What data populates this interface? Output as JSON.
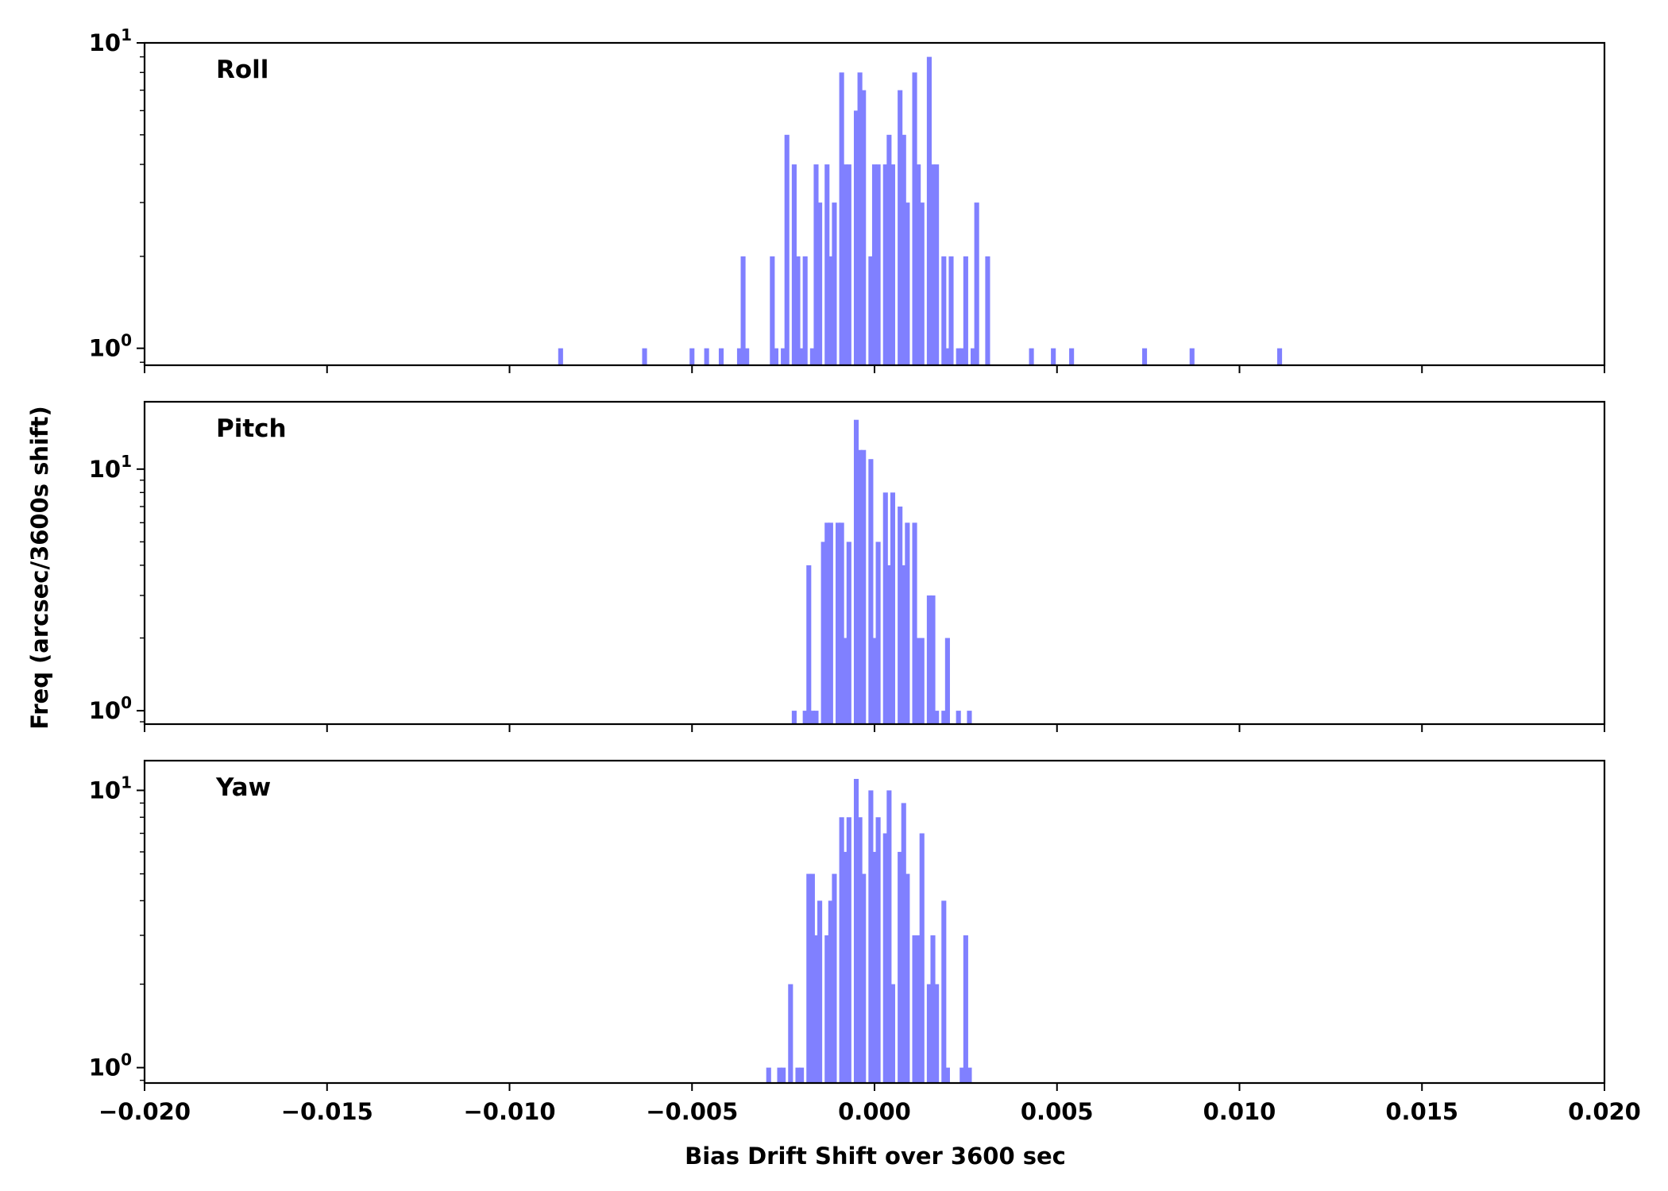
{
  "chart_data": {
    "type": "bar",
    "ylabel": "Freq (arcsec/3600s shift)",
    "xlabel": "Bias Drift Shift over 3600 sec",
    "xlim": [
      -0.02,
      0.02
    ],
    "x_ticks": [
      -0.02,
      -0.015,
      -0.01,
      -0.005,
      0.0,
      0.005,
      0.01,
      0.015,
      0.02
    ],
    "x_tick_labels": [
      "−0.020",
      "−0.015",
      "−0.010",
      "−0.005",
      "0.000",
      "0.005",
      "0.010",
      "0.015",
      "0.020"
    ],
    "yscale": "log",
    "bar_color": "#8080ff",
    "bin_width": 0.000133,
    "panels": [
      {
        "name": "Roll",
        "ylim": [
          0.88,
          10.0
        ],
        "y_ticks": [
          {
            "value": 1,
            "base": "10",
            "exp": "0"
          },
          {
            "value": 10,
            "base": "10",
            "exp": "1"
          }
        ],
        "bins": [
          [
            -0.0086,
            1
          ],
          [
            -0.0063,
            1
          ],
          [
            -0.005,
            1
          ],
          [
            -0.0046,
            1
          ],
          [
            -0.0042,
            1
          ],
          [
            -0.0037,
            1
          ],
          [
            -0.0036,
            2
          ],
          [
            -0.0035,
            1
          ],
          [
            -0.0028,
            2
          ],
          [
            -0.0027,
            1
          ],
          [
            -0.0025,
            1
          ],
          [
            -0.0024,
            5
          ],
          [
            -0.0022,
            4
          ],
          [
            -0.0021,
            2
          ],
          [
            -0.002,
            1
          ],
          [
            -0.0019,
            2
          ],
          [
            -0.0017,
            1
          ],
          [
            -0.0016,
            4
          ],
          [
            -0.0015,
            3
          ],
          [
            -0.0013,
            4
          ],
          [
            -0.0012,
            2
          ],
          [
            -0.0011,
            3
          ],
          [
            -0.0009,
            8
          ],
          [
            -0.0008,
            4
          ],
          [
            -0.0007,
            4
          ],
          [
            -0.0005,
            6
          ],
          [
            -0.0004,
            8
          ],
          [
            -0.0003,
            7
          ],
          [
            -0.0001,
            2
          ],
          [
            0.0,
            4
          ],
          [
            0.0001,
            4
          ],
          [
            0.0003,
            4
          ],
          [
            0.0004,
            5
          ],
          [
            0.0005,
            4
          ],
          [
            0.0007,
            7
          ],
          [
            0.0008,
            5
          ],
          [
            0.0009,
            3
          ],
          [
            0.0011,
            8
          ],
          [
            0.0012,
            4
          ],
          [
            0.0013,
            3
          ],
          [
            0.0015,
            9
          ],
          [
            0.0016,
            4
          ],
          [
            0.0017,
            4
          ],
          [
            0.0019,
            2
          ],
          [
            0.002,
            1
          ],
          [
            0.0021,
            2
          ],
          [
            0.0023,
            1
          ],
          [
            0.0024,
            1
          ],
          [
            0.0025,
            2
          ],
          [
            0.0027,
            1
          ],
          [
            0.0028,
            3
          ],
          [
            0.0031,
            2
          ],
          [
            0.0043,
            1
          ],
          [
            0.0049,
            1
          ],
          [
            0.0054,
            1
          ],
          [
            0.0074,
            1
          ],
          [
            0.0087,
            1
          ],
          [
            0.0111,
            1
          ]
        ]
      },
      {
        "name": "Pitch",
        "ylim": [
          0.88,
          19.0
        ],
        "y_ticks": [
          {
            "value": 1,
            "base": "10",
            "exp": "0"
          },
          {
            "value": 10,
            "base": "10",
            "exp": "1"
          }
        ],
        "bins": [
          [
            -0.0022,
            1
          ],
          [
            -0.0019,
            1
          ],
          [
            -0.0018,
            4
          ],
          [
            -0.0017,
            1
          ],
          [
            -0.0016,
            1
          ],
          [
            -0.0014,
            5
          ],
          [
            -0.0013,
            6
          ],
          [
            -0.0012,
            6
          ],
          [
            -0.001,
            6
          ],
          [
            -0.0009,
            6
          ],
          [
            -0.0008,
            2
          ],
          [
            -0.0007,
            5
          ],
          [
            -0.0005,
            16
          ],
          [
            -0.0004,
            12
          ],
          [
            -0.0003,
            12
          ],
          [
            -0.0001,
            11
          ],
          [
            0.0,
            2
          ],
          [
            0.0001,
            5
          ],
          [
            0.0003,
            8
          ],
          [
            0.0004,
            4
          ],
          [
            0.0005,
            8
          ],
          [
            0.0007,
            7
          ],
          [
            0.0008,
            4
          ],
          [
            0.0009,
            6
          ],
          [
            0.0011,
            6
          ],
          [
            0.0012,
            2
          ],
          [
            0.0013,
            2
          ],
          [
            0.0015,
            3
          ],
          [
            0.0016,
            3
          ],
          [
            0.0017,
            1
          ],
          [
            0.0019,
            1
          ],
          [
            0.002,
            2
          ],
          [
            0.0023,
            1
          ],
          [
            0.0026,
            1
          ]
        ]
      },
      {
        "name": "Yaw",
        "ylim": [
          0.88,
          12.8
        ],
        "y_ticks": [
          {
            "value": 1,
            "base": "10",
            "exp": "0"
          },
          {
            "value": 10,
            "base": "10",
            "exp": "1"
          }
        ],
        "bins": [
          [
            -0.0029,
            1
          ],
          [
            -0.0026,
            1
          ],
          [
            -0.0025,
            1
          ],
          [
            -0.0023,
            2
          ],
          [
            -0.0021,
            1
          ],
          [
            -0.002,
            1
          ],
          [
            -0.0018,
            5
          ],
          [
            -0.0017,
            5
          ],
          [
            -0.0016,
            3
          ],
          [
            -0.0015,
            4
          ],
          [
            -0.0013,
            3
          ],
          [
            -0.0012,
            4
          ],
          [
            -0.0011,
            5
          ],
          [
            -0.0009,
            8
          ],
          [
            -0.0008,
            6
          ],
          [
            -0.0007,
            8
          ],
          [
            -0.0005,
            11
          ],
          [
            -0.0004,
            8
          ],
          [
            -0.0003,
            5
          ],
          [
            -0.0001,
            10
          ],
          [
            0.0,
            6
          ],
          [
            0.0001,
            8
          ],
          [
            0.0003,
            7
          ],
          [
            0.0004,
            10
          ],
          [
            0.0005,
            2
          ],
          [
            0.0007,
            6
          ],
          [
            0.0008,
            9
          ],
          [
            0.0009,
            5
          ],
          [
            0.0011,
            3
          ],
          [
            0.0012,
            3
          ],
          [
            0.0013,
            7
          ],
          [
            0.0015,
            2
          ],
          [
            0.0016,
            3
          ],
          [
            0.0017,
            2
          ],
          [
            0.0019,
            4
          ],
          [
            0.002,
            1
          ],
          [
            0.0024,
            1
          ],
          [
            0.0025,
            3
          ],
          [
            0.0026,
            1
          ]
        ]
      }
    ]
  }
}
